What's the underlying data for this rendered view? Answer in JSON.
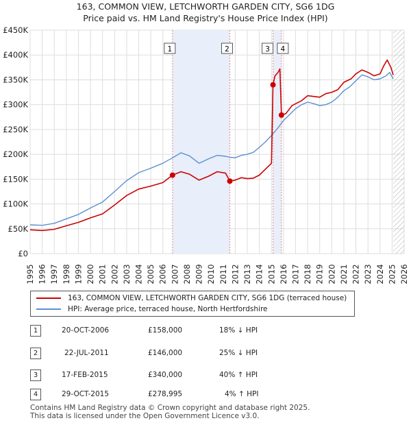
{
  "title_line1": "163, COMMON VIEW, LETCHWORTH GARDEN CITY, SG6 1DG",
  "title_line2": "Price paid vs. HM Land Registry's House Price Index (HPI)",
  "colors": {
    "property_line": "#cc0000",
    "hpi_line": "#5b8fd1",
    "shade": "#e8eefa",
    "marker": "#cc0000",
    "vline": "#e88888",
    "grid": "#dddddd",
    "hatch": "#aaaaaa"
  },
  "chart_data": {
    "type": "line",
    "title": "Price paid vs. HM Land Registry's House Price Index (HPI)",
    "x_range": [
      1995.0,
      2026.0
    ],
    "ylim": [
      0,
      450000
    ],
    "y_ticks": [
      0,
      50000,
      100000,
      150000,
      200000,
      250000,
      300000,
      350000,
      400000,
      450000
    ],
    "y_tick_labels": [
      "£0",
      "£50K",
      "£100K",
      "£150K",
      "£200K",
      "£250K",
      "£300K",
      "£350K",
      "£400K",
      "£450K"
    ],
    "x_ticks": [
      1995,
      1996,
      1997,
      1998,
      1999,
      2000,
      2001,
      2002,
      2003,
      2004,
      2005,
      2006,
      2007,
      2008,
      2009,
      2010,
      2011,
      2012,
      2013,
      2014,
      2015,
      2016,
      2017,
      2018,
      2019,
      2020,
      2021,
      2022,
      2023,
      2024,
      2025,
      2026
    ],
    "x_tick_labels": [
      "1995",
      "1996",
      "1997",
      "1998",
      "1999",
      "2000",
      "2001",
      "2002",
      "2003",
      "2004",
      "2005",
      "2006",
      "2007",
      "2008",
      "2009",
      "2010",
      "2011",
      "2012",
      "2013",
      "2014",
      "2015",
      "2016",
      "2017",
      "2018",
      "2019",
      "2020",
      "2021",
      "2022",
      "2023",
      "2024",
      "2025",
      "2026"
    ],
    "shaded_periods": [
      [
        2006.8,
        2011.55
      ],
      [
        2015.13,
        2015.83
      ]
    ],
    "future_hatch_from": 2025.1,
    "series": [
      {
        "name": "163, COMMON VIEW, LETCHWORTH GARDEN CITY, SG6 1DG (terraced house)",
        "points": [
          [
            1995.0,
            48000
          ],
          [
            1996.0,
            46500
          ],
          [
            1997.0,
            49000
          ],
          [
            1998.0,
            56000
          ],
          [
            1999.0,
            63000
          ],
          [
            2000.0,
            72000
          ],
          [
            2001.0,
            80000
          ],
          [
            2002.0,
            98000
          ],
          [
            2003.0,
            117000
          ],
          [
            2004.0,
            130000
          ],
          [
            2005.0,
            136000
          ],
          [
            2006.0,
            143000
          ],
          [
            2006.8,
            158000
          ],
          [
            2007.5,
            165000
          ],
          [
            2008.2,
            160000
          ],
          [
            2009.0,
            148000
          ],
          [
            2009.8,
            156000
          ],
          [
            2010.5,
            165000
          ],
          [
            2011.2,
            162000
          ],
          [
            2011.55,
            146000
          ],
          [
            2012.0,
            148000
          ],
          [
            2012.5,
            153000
          ],
          [
            2013.0,
            151000
          ],
          [
            2013.5,
            152000
          ],
          [
            2014.0,
            158000
          ],
          [
            2014.5,
            170000
          ],
          [
            2015.0,
            182000
          ],
          [
            2015.13,
            340000
          ],
          [
            2015.3,
            358000
          ],
          [
            2015.55,
            365000
          ],
          [
            2015.7,
            372000
          ],
          [
            2015.83,
            278995
          ],
          [
            2016.2,
            282000
          ],
          [
            2016.7,
            298000
          ],
          [
            2017.5,
            308000
          ],
          [
            2018.0,
            318000
          ],
          [
            2019.0,
            315000
          ],
          [
            2019.5,
            322000
          ],
          [
            2020.0,
            325000
          ],
          [
            2020.5,
            330000
          ],
          [
            2021.0,
            345000
          ],
          [
            2021.6,
            352000
          ],
          [
            2022.0,
            362000
          ],
          [
            2022.5,
            370000
          ],
          [
            2023.0,
            365000
          ],
          [
            2023.5,
            358000
          ],
          [
            2024.0,
            362000
          ],
          [
            2024.3,
            378000
          ],
          [
            2024.6,
            390000
          ],
          [
            2024.9,
            375000
          ],
          [
            2025.1,
            360000
          ]
        ]
      },
      {
        "name": "HPI: Average price, terraced house, North Hertfordshire",
        "points": [
          [
            1995.0,
            58000
          ],
          [
            1996.0,
            57000
          ],
          [
            1997.0,
            61000
          ],
          [
            1998.0,
            70000
          ],
          [
            1999.0,
            79000
          ],
          [
            2000.0,
            92000
          ],
          [
            2001.0,
            104000
          ],
          [
            2002.0,
            125000
          ],
          [
            2003.0,
            147000
          ],
          [
            2004.0,
            163000
          ],
          [
            2005.0,
            172000
          ],
          [
            2006.0,
            182000
          ],
          [
            2006.8,
            193000
          ],
          [
            2007.5,
            203000
          ],
          [
            2008.2,
            197000
          ],
          [
            2009.0,
            182000
          ],
          [
            2009.8,
            191000
          ],
          [
            2010.5,
            198000
          ],
          [
            2011.2,
            196000
          ],
          [
            2011.55,
            194000
          ],
          [
            2012.0,
            193000
          ],
          [
            2012.5,
            198000
          ],
          [
            2013.0,
            200000
          ],
          [
            2013.5,
            204000
          ],
          [
            2014.0,
            214000
          ],
          [
            2014.5,
            225000
          ],
          [
            2015.0,
            238000
          ],
          [
            2015.5,
            252000
          ],
          [
            2016.0,
            268000
          ],
          [
            2016.5,
            280000
          ],
          [
            2017.0,
            292000
          ],
          [
            2017.5,
            300000
          ],
          [
            2018.0,
            305000
          ],
          [
            2018.5,
            302000
          ],
          [
            2019.0,
            298000
          ],
          [
            2019.5,
            300000
          ],
          [
            2020.0,
            305000
          ],
          [
            2020.5,
            315000
          ],
          [
            2021.0,
            328000
          ],
          [
            2021.5,
            336000
          ],
          [
            2022.0,
            348000
          ],
          [
            2022.5,
            360000
          ],
          [
            2023.0,
            356000
          ],
          [
            2023.5,
            350000
          ],
          [
            2024.0,
            352000
          ],
          [
            2024.5,
            358000
          ],
          [
            2024.8,
            365000
          ],
          [
            2025.1,
            352000
          ]
        ]
      }
    ],
    "sales": [
      {
        "num": "1",
        "x": 2006.8,
        "price": 158000
      },
      {
        "num": "2",
        "x": 2011.55,
        "price": 146000
      },
      {
        "num": "3",
        "x": 2015.13,
        "price": 340000
      },
      {
        "num": "4",
        "x": 2015.83,
        "price": 278995
      }
    ]
  },
  "legend": {
    "property_label": "163, COMMON VIEW, LETCHWORTH GARDEN CITY, SG6 1DG (terraced house)",
    "hpi_label": "HPI: Average price, terraced house, North Hertfordshire"
  },
  "sales_table": [
    {
      "num": "1",
      "date": "20-OCT-2006",
      "price": "£158,000",
      "hpi": "18% ↓ HPI"
    },
    {
      "num": "2",
      "date": "22-JUL-2011",
      "price": "£146,000",
      "hpi": "25% ↓ HPI"
    },
    {
      "num": "3",
      "date": "17-FEB-2015",
      "price": "£340,000",
      "hpi": "40% ↑ HPI"
    },
    {
      "num": "4",
      "date": "29-OCT-2015",
      "price": "£278,995",
      "hpi": "4% ↑ HPI"
    }
  ],
  "footer_line1": "Contains HM Land Registry data © Crown copyright and database right 2025.",
  "footer_line2": "This data is licensed under the Open Government Licence v3.0."
}
